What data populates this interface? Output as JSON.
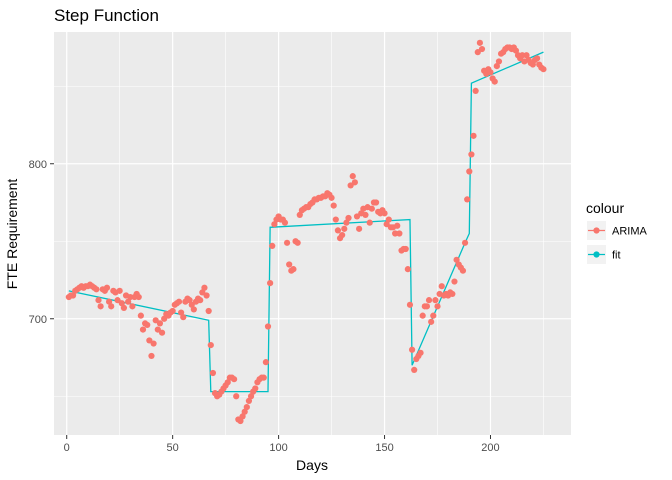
{
  "chart_data": {
    "type": "scatter",
    "title": "Step Function",
    "xlabel": "Days",
    "ylabel": "FTE Requirement",
    "xlim": [
      -6,
      238
    ],
    "ylim": [
      625,
      885
    ],
    "x_ticks": [
      0,
      50,
      100,
      150,
      200
    ],
    "y_ticks": [
      700,
      800
    ],
    "grid": true,
    "legend": {
      "title": "colour",
      "position": "right",
      "entries": [
        {
          "label": "ARIMA",
          "color": "#F8766D"
        },
        {
          "label": "fit",
          "color": "#00BFC4"
        }
      ]
    },
    "series": [
      {
        "name": "ARIMA",
        "style": "points",
        "color": "#F8766D",
        "points": [
          [
            1,
            714
          ],
          [
            2,
            715
          ],
          [
            3,
            715
          ],
          [
            4,
            718
          ],
          [
            5,
            719
          ],
          [
            6,
            720
          ],
          [
            7,
            721
          ],
          [
            8,
            720
          ],
          [
            9,
            721
          ],
          [
            10,
            721
          ],
          [
            11,
            722
          ],
          [
            12,
            721
          ],
          [
            13,
            720
          ],
          [
            14,
            719
          ],
          [
            15,
            712
          ],
          [
            16,
            708
          ],
          [
            17,
            719
          ],
          [
            18,
            718
          ],
          [
            19,
            720
          ],
          [
            20,
            711
          ],
          [
            21,
            708
          ],
          [
            22,
            718
          ],
          [
            23,
            717
          ],
          [
            24,
            712
          ],
          [
            25,
            718
          ],
          [
            26,
            710
          ],
          [
            27,
            707
          ],
          [
            28,
            715
          ],
          [
            29,
            711
          ],
          [
            30,
            714
          ],
          [
            31,
            708
          ],
          [
            32,
            714
          ],
          [
            33,
            716
          ],
          [
            34,
            714
          ],
          [
            35,
            702
          ],
          [
            36,
            693
          ],
          [
            37,
            697
          ],
          [
            38,
            696
          ],
          [
            39,
            686
          ],
          [
            40,
            676
          ],
          [
            41,
            684
          ],
          [
            42,
            699
          ],
          [
            43,
            693
          ],
          [
            44,
            697
          ],
          [
            45,
            691
          ],
          [
            46,
            700
          ],
          [
            47,
            703
          ],
          [
            48,
            702
          ],
          [
            49,
            704
          ],
          [
            50,
            705
          ],
          [
            51,
            709
          ],
          [
            52,
            710
          ],
          [
            53,
            711
          ],
          [
            54,
            704
          ],
          [
            55,
            701
          ],
          [
            56,
            711
          ],
          [
            57,
            713
          ],
          [
            58,
            712
          ],
          [
            59,
            709
          ],
          [
            60,
            706
          ],
          [
            61,
            711
          ],
          [
            62,
            713
          ],
          [
            63,
            712
          ],
          [
            64,
            717
          ],
          [
            65,
            720
          ],
          [
            66,
            715
          ],
          [
            67,
            705
          ],
          [
            68,
            683
          ],
          [
            69,
            665
          ],
          [
            70,
            652
          ],
          [
            71,
            650
          ],
          [
            72,
            651
          ],
          [
            73,
            653
          ],
          [
            74,
            655
          ],
          [
            75,
            657
          ],
          [
            76,
            659
          ],
          [
            77,
            662
          ],
          [
            78,
            662
          ],
          [
            79,
            661
          ],
          [
            80,
            650
          ],
          [
            81,
            635
          ],
          [
            82,
            634
          ],
          [
            83,
            637
          ],
          [
            84,
            640
          ],
          [
            85,
            643
          ],
          [
            86,
            647
          ],
          [
            87,
            650
          ],
          [
            88,
            653
          ],
          [
            89,
            655
          ],
          [
            90,
            659
          ],
          [
            91,
            661
          ],
          [
            92,
            662
          ],
          [
            93,
            662
          ],
          [
            94,
            672
          ],
          [
            95,
            695
          ],
          [
            96,
            723
          ],
          [
            97,
            747
          ],
          [
            98,
            761
          ],
          [
            99,
            764
          ],
          [
            100,
            766
          ],
          [
            101,
            764
          ],
          [
            102,
            764
          ],
          [
            103,
            762
          ],
          [
            104,
            749
          ],
          [
            105,
            735
          ],
          [
            106,
            731
          ],
          [
            107,
            732
          ],
          [
            108,
            750
          ],
          [
            109,
            749
          ],
          [
            110,
            767
          ],
          [
            111,
            770
          ],
          [
            112,
            771
          ],
          [
            113,
            772
          ],
          [
            114,
            772
          ],
          [
            115,
            774
          ],
          [
            116,
            775
          ],
          [
            117,
            777
          ],
          [
            118,
            777
          ],
          [
            119,
            778
          ],
          [
            120,
            778
          ],
          [
            121,
            779
          ],
          [
            122,
            779
          ],
          [
            123,
            781
          ],
          [
            124,
            780
          ],
          [
            125,
            778
          ],
          [
            126,
            773
          ],
          [
            127,
            764
          ],
          [
            128,
            757
          ],
          [
            129,
            752
          ],
          [
            130,
            754
          ],
          [
            131,
            758
          ],
          [
            132,
            762
          ],
          [
            133,
            765
          ],
          [
            134,
            786
          ],
          [
            135,
            792
          ],
          [
            136,
            788
          ],
          [
            137,
            766
          ],
          [
            138,
            758
          ],
          [
            139,
            768
          ],
          [
            140,
            771
          ],
          [
            141,
            767
          ],
          [
            142,
            772
          ],
          [
            143,
            762
          ],
          [
            144,
            771
          ],
          [
            145,
            775
          ],
          [
            146,
            775
          ],
          [
            147,
            769
          ],
          [
            148,
            768
          ],
          [
            149,
            770
          ],
          [
            150,
            768
          ],
          [
            151,
            761
          ],
          [
            152,
            764
          ],
          [
            153,
            759
          ],
          [
            154,
            759
          ],
          [
            155,
            755
          ],
          [
            156,
            760
          ],
          [
            157,
            755
          ],
          [
            158,
            744
          ],
          [
            159,
            745
          ],
          [
            160,
            745
          ],
          [
            161,
            732
          ],
          [
            162,
            709
          ],
          [
            163,
            680
          ],
          [
            164,
            667
          ],
          [
            165,
            674
          ],
          [
            166,
            676
          ],
          [
            167,
            678
          ],
          [
            168,
            702
          ],
          [
            169,
            708
          ],
          [
            170,
            708
          ],
          [
            171,
            712
          ],
          [
            172,
            698
          ],
          [
            173,
            702
          ],
          [
            174,
            712
          ],
          [
            175,
            708
          ],
          [
            176,
            716
          ],
          [
            177,
            721
          ],
          [
            178,
            715
          ],
          [
            179,
            716
          ],
          [
            180,
            715
          ],
          [
            181,
            717
          ],
          [
            182,
            716
          ],
          [
            183,
            724
          ],
          [
            184,
            738
          ],
          [
            185,
            735
          ],
          [
            186,
            733
          ],
          [
            187,
            731
          ],
          [
            188,
            749
          ],
          [
            189,
            777
          ],
          [
            190,
            795
          ],
          [
            191,
            806
          ],
          [
            192,
            818
          ],
          [
            193,
            847
          ],
          [
            194,
            872
          ],
          [
            195,
            878
          ],
          [
            196,
            874
          ],
          [
            197,
            860
          ],
          [
            198,
            858
          ],
          [
            199,
            861
          ],
          [
            200,
            859
          ],
          [
            201,
            855
          ],
          [
            202,
            853
          ],
          [
            203,
            863
          ],
          [
            204,
            866
          ],
          [
            205,
            871
          ],
          [
            206,
            872
          ],
          [
            207,
            874
          ],
          [
            208,
            875
          ],
          [
            209,
            875
          ],
          [
            210,
            874
          ],
          [
            211,
            875
          ],
          [
            212,
            873
          ],
          [
            213,
            870
          ],
          [
            214,
            868
          ],
          [
            215,
            870
          ],
          [
            216,
            866
          ],
          [
            217,
            870
          ],
          [
            218,
            867
          ],
          [
            219,
            865
          ],
          [
            220,
            864
          ],
          [
            221,
            867
          ],
          [
            222,
            868
          ],
          [
            223,
            864
          ],
          [
            224,
            862
          ],
          [
            225,
            861
          ]
        ]
      },
      {
        "name": "fit",
        "style": "line",
        "color": "#00BFC4",
        "points": [
          [
            1,
            718
          ],
          [
            67,
            699
          ],
          [
            68,
            653
          ],
          [
            95,
            653
          ],
          [
            96,
            759
          ],
          [
            162,
            764
          ],
          [
            163,
            670
          ],
          [
            188,
            749
          ],
          [
            190,
            755
          ],
          [
            191,
            852
          ],
          [
            225,
            872
          ]
        ]
      }
    ]
  }
}
